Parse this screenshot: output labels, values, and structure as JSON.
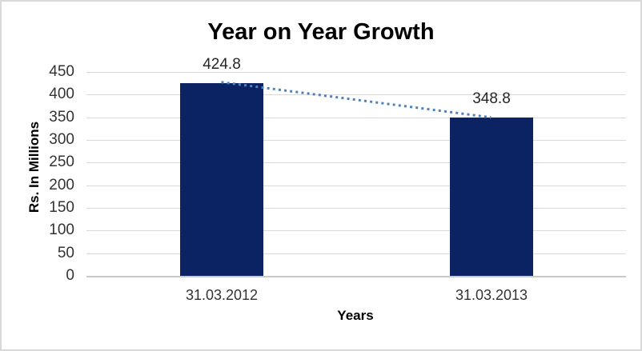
{
  "chart_data": {
    "type": "bar",
    "title": "Year on Year Growth",
    "categories": [
      "31.03.2012",
      "31.03.2013"
    ],
    "values": [
      424.8,
      348.8
    ],
    "data_labels": [
      "424.8",
      "348.8"
    ],
    "xlabel": "Years",
    "ylabel": "Rs. In Millions",
    "ylim": [
      0,
      450
    ],
    "yticks": [
      0,
      50,
      100,
      150,
      200,
      250,
      300,
      350,
      400,
      450
    ],
    "grid": true,
    "legend_position": "none",
    "trendline": {
      "type": "linear",
      "style": "dotted"
    },
    "colors": {
      "bar": "#0c2363",
      "trendline": "#4f81bd",
      "gridline": "#d9d9d9",
      "axis_line": "#c9c9c9",
      "tick_text": "#333333",
      "data_label_text": "#262626",
      "title_text": "#000000",
      "frame_border": "#d9d9d9",
      "background": "#ffffff"
    }
  }
}
